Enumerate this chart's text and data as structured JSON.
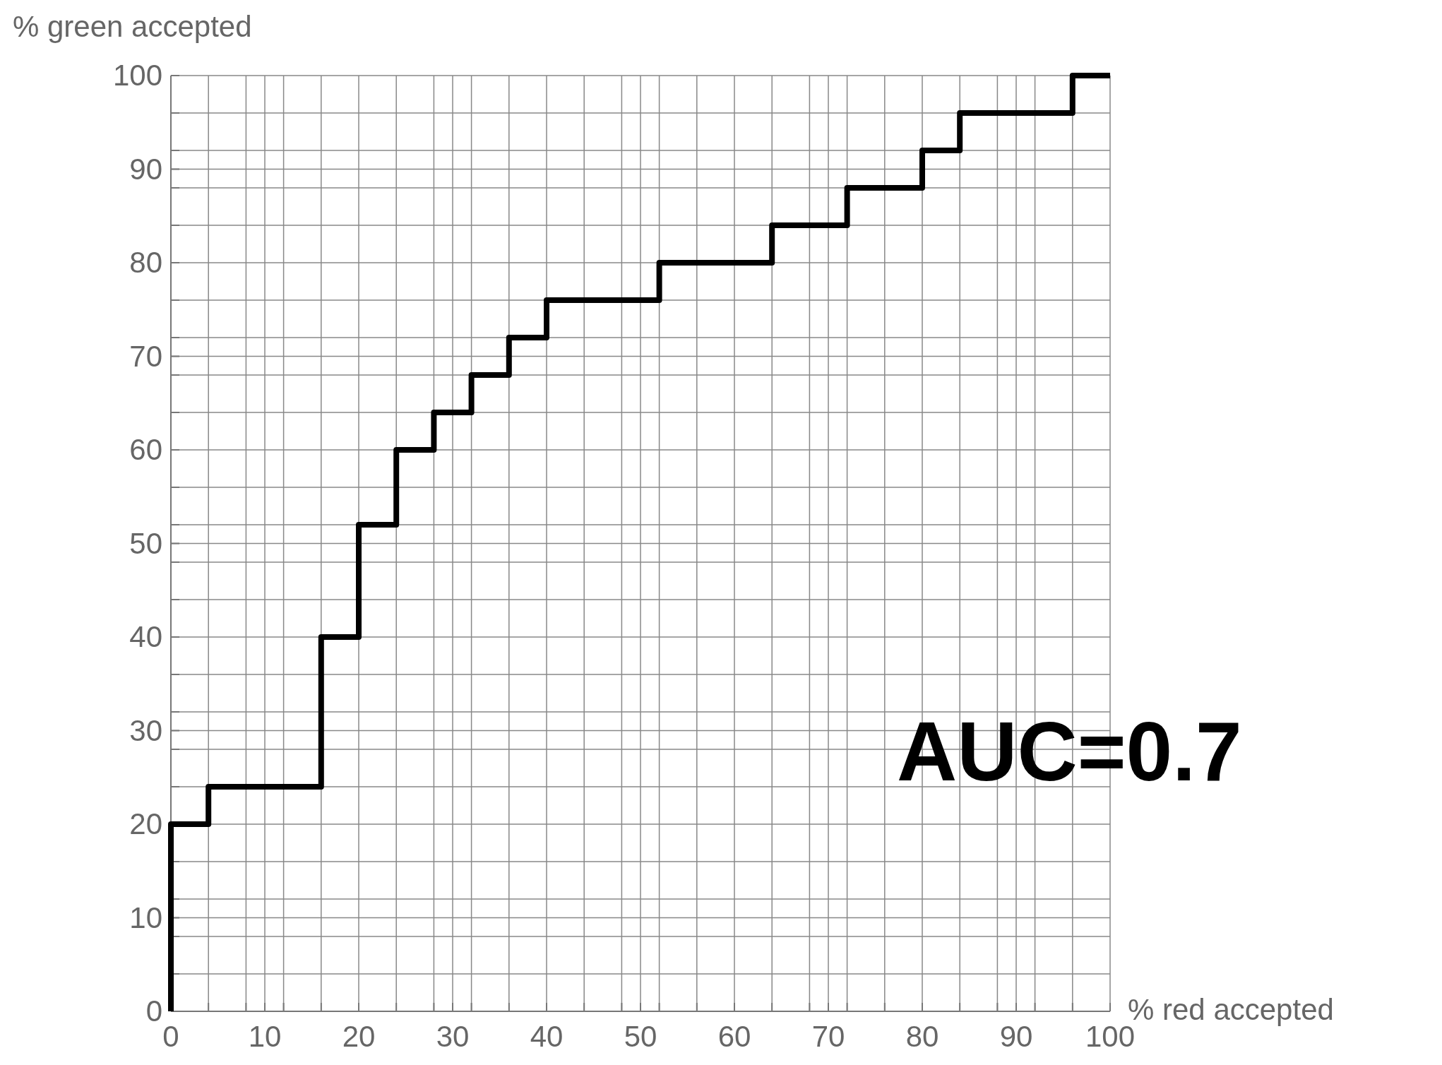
{
  "chart_data": {
    "type": "step",
    "xlabel": "% red accepted",
    "ylabel": "% green accepted",
    "annotations": [
      "AUC=0.7"
    ],
    "x": [
      0,
      0,
      4,
      16,
      20,
      24,
      28,
      32,
      36,
      40,
      52,
      64,
      72,
      80,
      84,
      96,
      100
    ],
    "series": [
      {
        "color": "#000000",
        "values": [
          0,
          20,
          24,
          40,
          52,
          60,
          64,
          68,
          72,
          76,
          80,
          84,
          88,
          92,
          96,
          100,
          100
        ]
      }
    ],
    "xlim": [
      0,
      100
    ],
    "ylim": [
      0,
      100
    ],
    "xticks": [
      0,
      {
        "value": 4,
        "label": null
      },
      {
        "value": 8,
        "label": null
      },
      10,
      {
        "value": 12,
        "label": null
      },
      {
        "value": 16,
        "label": null
      },
      20,
      {
        "value": 24,
        "label": null
      },
      {
        "value": 28,
        "label": null
      },
      30,
      {
        "value": 32,
        "label": null
      },
      {
        "value": 36,
        "label": null
      },
      40,
      {
        "value": 44,
        "label": null
      },
      {
        "value": 48,
        "label": null
      },
      50,
      {
        "value": 52,
        "label": null
      },
      {
        "value": 56,
        "label": null
      },
      60,
      {
        "value": 64,
        "label": null
      },
      {
        "value": 68,
        "label": null
      },
      70,
      {
        "value": 72,
        "label": null
      },
      {
        "value": 76,
        "label": null
      },
      80,
      {
        "value": 84,
        "label": null
      },
      {
        "value": 88,
        "label": null
      },
      90,
      {
        "value": 92,
        "label": null
      },
      {
        "value": 96,
        "label": null
      },
      100
    ],
    "yticks": [
      0,
      {
        "value": 4,
        "label": null
      },
      {
        "value": 8,
        "label": null
      },
      10,
      {
        "value": 12,
        "label": null
      },
      {
        "value": 16,
        "label": null
      },
      20,
      {
        "value": 24,
        "label": null
      },
      {
        "value": 28,
        "label": null
      },
      30,
      {
        "value": 32,
        "label": null
      },
      {
        "value": 36,
        "label": null
      },
      40,
      {
        "value": 44,
        "label": null
      },
      {
        "value": 48,
        "label": null
      },
      50,
      {
        "value": 52,
        "label": null
      },
      {
        "value": 56,
        "label": null
      },
      60,
      {
        "value": 64,
        "label": null
      },
      {
        "value": 68,
        "label": null
      },
      70,
      {
        "value": 72,
        "label": null
      },
      {
        "value": 76,
        "label": null
      },
      80,
      {
        "value": 84,
        "label": null
      },
      {
        "value": 88,
        "label": null
      },
      90,
      {
        "value": 92,
        "label": null
      },
      {
        "value": 96,
        "label": null
      },
      100
    ],
    "grid": true,
    "marker": "none",
    "line_style": "solid"
  }
}
